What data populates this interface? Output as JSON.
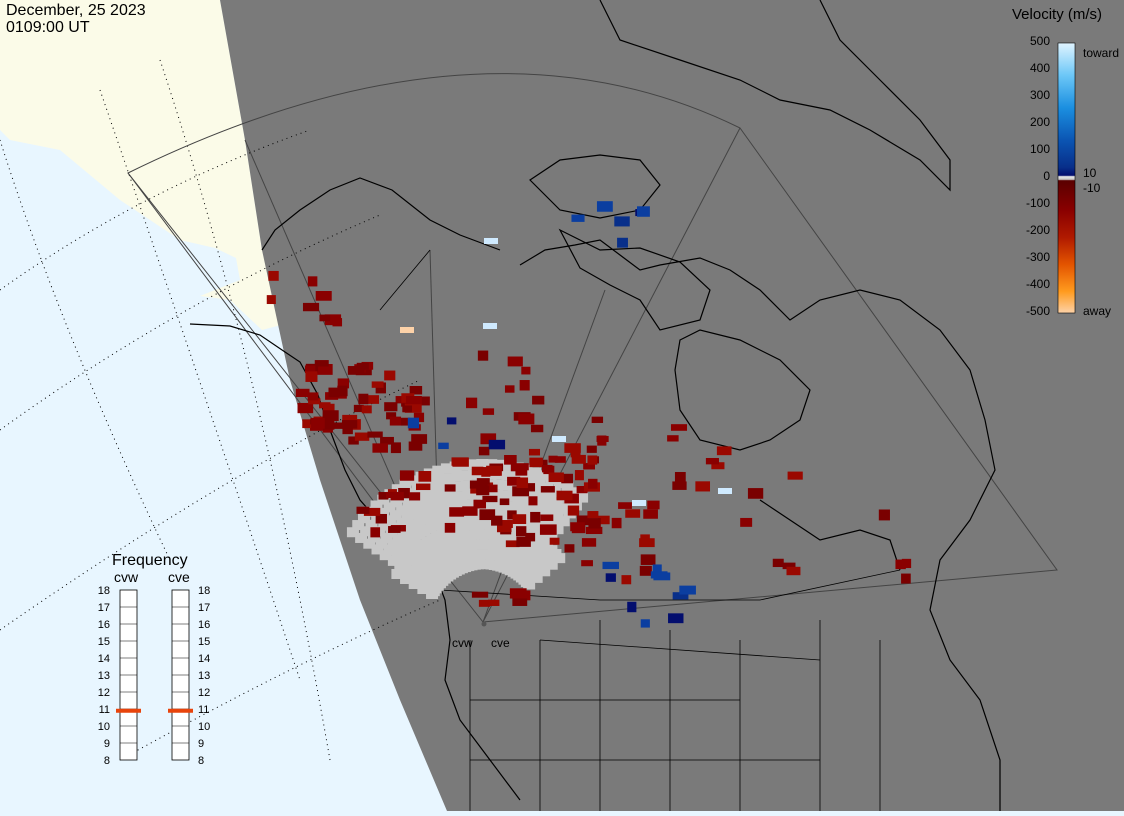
{
  "header": {
    "date": "December, 25 2023",
    "time": "0109:00 UT"
  },
  "colorbar": {
    "title": "Velocity (m/s)",
    "ticks": [
      "500",
      "400",
      "300",
      "200",
      "100",
      "0",
      "-100",
      "-200",
      "-300",
      "-400",
      "-500"
    ],
    "extra_labels": [
      "toward",
      "10",
      "-10",
      "away"
    ],
    "gradient_colors": [
      "#e0f4ff",
      "#6cc7f7",
      "#1b8fe0",
      "#0b55b3",
      "#082f8a",
      "#030e6e",
      "#c8c8c8",
      "#7a0000",
      "#b01a00",
      "#e35400",
      "#ff9b1e",
      "#fdd2a8"
    ]
  },
  "frequency_panel": {
    "title": "Frequency",
    "left_radar": "cvw",
    "right_radar": "cve",
    "scale": [
      "18",
      "17",
      "16",
      "15",
      "14",
      "13",
      "12",
      "11",
      "10",
      "9",
      "8"
    ],
    "current_mhz": {
      "cvw": 10.9,
      "cve": 10.9
    },
    "marker_color": "#e8440c"
  },
  "map": {
    "radar_labels": [
      "cvw",
      "cve"
    ],
    "colors": {
      "ocean": "#e8f6ff",
      "night_side": "#7a7a7a",
      "day_land": "#fbfbe8",
      "ground_scatter": "#c8c8c8"
    }
  }
}
